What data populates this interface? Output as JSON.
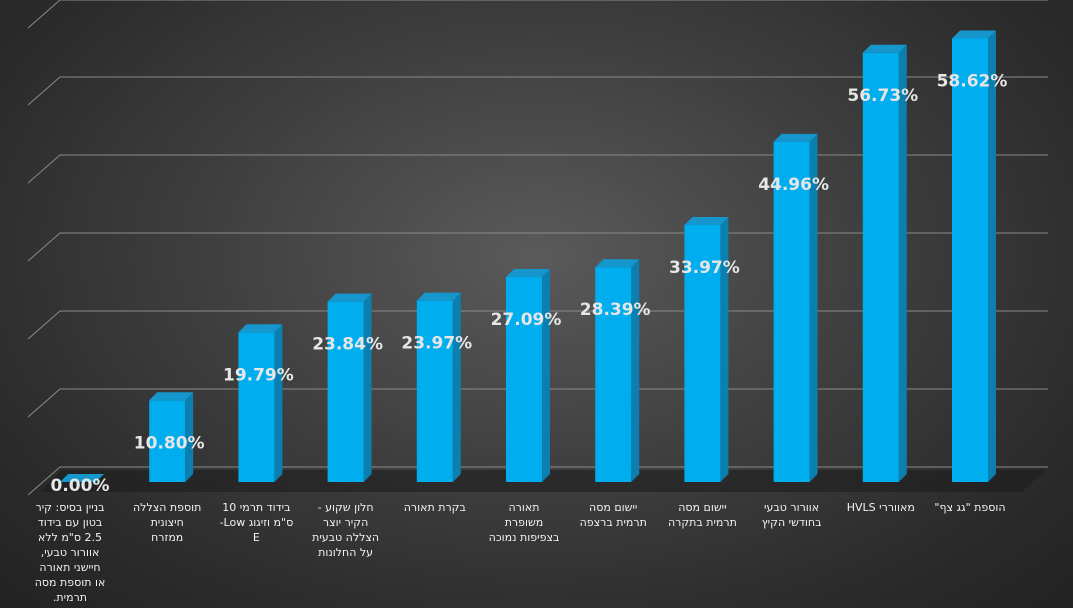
{
  "chart_data": {
    "type": "bar",
    "title": "",
    "xlabel": "",
    "ylabel": "",
    "ylim": [
      0,
      60
    ],
    "grid": true,
    "legend": "none",
    "categories": [
      [
        "בניין בסיס: קיר",
        "בטון עם בידוד",
        "2.5 ס\"מ ללא",
        "אוורור טבעי,",
        "חיישני תאורה",
        "או תוספת מסה",
        "תרמית."
      ],
      [
        "תוספת הצללה",
        "חיצונית",
        "ממזרח"
      ],
      [
        "בידוד תרמי 10",
        "ס\"מ וזיגוג Low-",
        "E"
      ],
      [
        "חלון שקוע -",
        "הקיר יוצר",
        "הצללה טבעית",
        "על החלונות"
      ],
      [
        "בקרת תאורה"
      ],
      [
        "תאורה",
        "משופרת",
        "בצפיפות נמוכה"
      ],
      [
        "יישום מסה",
        "תרמית ברצפה"
      ],
      [
        "יישום מסה",
        "תרמית בתקרה"
      ],
      [
        "אוורור טבעי",
        "בחודשי הקיץ"
      ],
      [
        "מאווררי HVLS"
      ],
      [
        "הוספת \"גג צף\""
      ]
    ],
    "values": [
      0.0,
      10.8,
      19.79,
      23.84,
      23.97,
      27.09,
      28.39,
      33.97,
      44.96,
      56.73,
      58.62
    ],
    "data_labels": [
      "0.00%",
      "10.80%",
      "19.79%",
      "23.84%",
      "23.97%",
      "27.09%",
      "28.39%",
      "33.97%",
      "44.96%",
      "56.73%",
      "58.62%"
    ],
    "colors": {
      "bar_front": "#00adef",
      "bar_side": "#0a7fb0",
      "bar_top": "#1596cc",
      "gridline": "#8a8a8a",
      "label": "#f2f2f2",
      "value_label": "#e6e6e6"
    }
  }
}
